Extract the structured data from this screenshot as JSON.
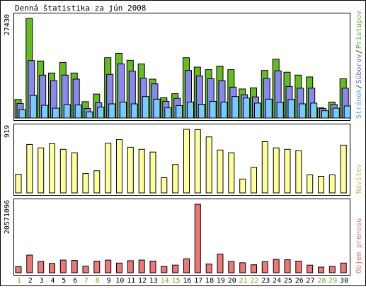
{
  "chart_data": {
    "type": "bar",
    "title": "Denná štatistika za jún 2008",
    "categories": [
      "1",
      "2",
      "3",
      "4",
      "5",
      "6",
      "7",
      "8",
      "9",
      "10",
      "11",
      "12",
      "13",
      "14",
      "15",
      "16",
      "17",
      "18",
      "19",
      "20",
      "21",
      "22",
      "23",
      "24",
      "25",
      "26",
      "27",
      "28",
      "29",
      "30"
    ],
    "weekend_days": [
      "1",
      "7",
      "8",
      "14",
      "15",
      "21",
      "22",
      "28",
      "29"
    ],
    "colors": {
      "pristupov": "#66bb22",
      "suborov": "#8888ee",
      "stranok": "#77ccff",
      "navstev": "#ffff99",
      "objem": "#ee7777",
      "weekday_label": "#000000",
      "weekend_label": "#77aa22",
      "legend_pristupov": "#66aa33",
      "legend_suborov": "#6666cc",
      "legend_stranok": "#55aaee",
      "legend_navstev": "#bbbb55",
      "legend_objem": "#ee6666"
    },
    "panels": [
      {
        "id": "hits",
        "ymax": 27430,
        "ymax_label": "27430",
        "legend": [
          "Stránok",
          "Súborov",
          "Prístupov"
        ],
        "series": [
          {
            "name": "Prístupov",
            "values": [
              5100,
              27430,
              15700,
              12400,
              15300,
              12400,
              4500,
              6600,
              16600,
              17800,
              15900,
              14900,
              10700,
              5600,
              6700,
              16600,
              14000,
              13300,
              14300,
              13300,
              8000,
              8300,
              13100,
              16200,
              12600,
              11800,
              11300,
              2800,
              4400,
              10800
            ]
          },
          {
            "name": "Súborov",
            "values": [
              4000,
              15800,
              11800,
              10300,
              11800,
              10700,
              2600,
              4200,
              12000,
              14900,
              12900,
              11000,
              9400,
              4600,
              5400,
              13100,
              11600,
              10800,
              10300,
              8500,
              6400,
              5800,
              10900,
              13000,
              8700,
              8200,
              8200,
              2600,
              3700,
              8200
            ]
          },
          {
            "name": "Stránok",
            "values": [
              2300,
              6200,
              3500,
              2700,
              3700,
              3600,
              1700,
              3000,
              3900,
              4400,
              3900,
              5900,
              5200,
              2800,
              3400,
              4400,
              3800,
              4600,
              4400,
              5900,
              5500,
              4100,
              5200,
              4300,
              5100,
              3900,
              4100,
              2000,
              2700,
              3300
            ]
          }
        ]
      },
      {
        "id": "visits",
        "ymax": 919,
        "ymax_label": "919",
        "legend": [
          "Návštev"
        ],
        "series": [
          {
            "name": "Návštev",
            "values": [
              270,
              700,
              650,
              710,
              630,
              580,
              280,
              320,
              720,
              770,
              660,
              630,
              590,
              220,
              410,
              919,
              915,
              810,
              620,
              580,
              200,
              370,
              740,
              650,
              630,
              610,
              260,
              240,
              260,
              690
            ]
          }
        ]
      },
      {
        "id": "volume",
        "ymax": 20571096,
        "ymax_label": "20571096",
        "legend": [
          "Objem prenosu"
        ],
        "series": [
          {
            "name": "Objem prenosu",
            "values": [
              1800000,
              5300000,
              3400000,
              2800000,
              3800000,
              3700000,
              2000000,
              3500000,
              3800000,
              2900000,
              3600000,
              3800000,
              3500000,
              1900000,
              2300000,
              4200000,
              20571096,
              2600000,
              5600000,
              3400000,
              3000000,
              2400000,
              3300000,
              4000000,
              3900000,
              3500000,
              2300000,
              1700000,
              1900000,
              2900000
            ]
          }
        ]
      }
    ]
  }
}
